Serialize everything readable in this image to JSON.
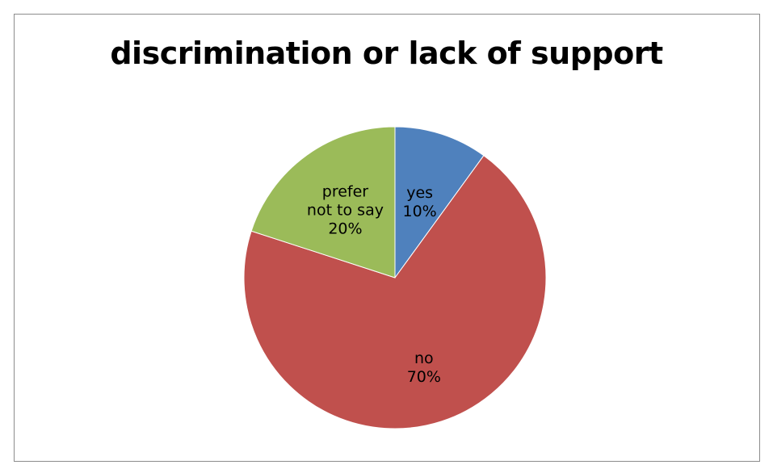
{
  "chart_data": {
    "type": "pie",
    "title": "discrimination or lack of support",
    "slices": [
      {
        "name": "yes",
        "value": 10,
        "label": [
          "yes",
          "10%"
        ],
        "color": "#4f81bd"
      },
      {
        "name": "no",
        "value": 70,
        "label": [
          "no",
          "70%"
        ],
        "color": "#c0504d"
      },
      {
        "name": "prefer not to say",
        "value": 20,
        "label": [
          "prefer",
          "not to say",
          "20%"
        ],
        "color": "#9bbb59"
      }
    ],
    "legend": "none",
    "start_angle": "12 o'clock, clockwise"
  }
}
